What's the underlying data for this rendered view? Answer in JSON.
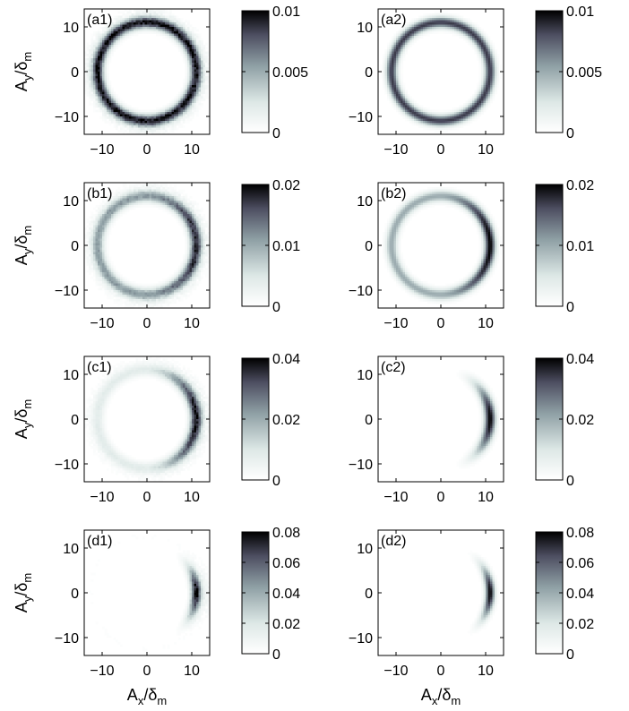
{
  "chart_data": [
    {
      "type": "heatmap",
      "panel_label": "(a1)",
      "x_ticks": [
        -10,
        0,
        10
      ],
      "y_ticks": [
        10,
        0,
        -10
      ],
      "xlim": [
        -14,
        14
      ],
      "ylim": [
        -14,
        14
      ],
      "colorbar": {
        "min": 0,
        "max": 0.01,
        "ticks": [
          "0.01",
          "0.005",
          "0"
        ]
      },
      "ring": {
        "radius": 11,
        "width": 1.3,
        "base_level": 0.95,
        "crescent": 0,
        "noise": true
      }
    },
    {
      "type": "heatmap",
      "panel_label": "(a2)",
      "x_ticks": [
        -10,
        0,
        10
      ],
      "y_ticks": [
        10,
        0,
        -10
      ],
      "xlim": [
        -14,
        14
      ],
      "ylim": [
        -14,
        14
      ],
      "colorbar": {
        "min": 0,
        "max": 0.01,
        "ticks": [
          "0.01",
          "0.005",
          "0"
        ]
      },
      "ring": {
        "radius": 11,
        "width": 1.2,
        "base_level": 0.85,
        "crescent": 0,
        "noise": false
      }
    },
    {
      "type": "heatmap",
      "panel_label": "(b1)",
      "x_ticks": [
        -10,
        0,
        10
      ],
      "y_ticks": [
        10,
        0,
        -10
      ],
      "xlim": [
        -14,
        14
      ],
      "ylim": [
        -14,
        14
      ],
      "colorbar": {
        "min": 0,
        "max": 0.02,
        "ticks": [
          "0.02",
          "0.01",
          "0"
        ]
      },
      "ring": {
        "radius": 11,
        "width": 1.3,
        "base_level": 0.55,
        "crescent": 0.35,
        "noise": true
      }
    },
    {
      "type": "heatmap",
      "panel_label": "(b2)",
      "x_ticks": [
        -10,
        0,
        10
      ],
      "y_ticks": [
        10,
        0,
        -10
      ],
      "xlim": [
        -14,
        14
      ],
      "ylim": [
        -14,
        14
      ],
      "colorbar": {
        "min": 0,
        "max": 0.02,
        "ticks": [
          "0.02",
          "0.01",
          "0"
        ]
      },
      "ring": {
        "radius": 11,
        "width": 1.2,
        "base_level": 0.5,
        "crescent": 0.5,
        "noise": false
      }
    },
    {
      "type": "heatmap",
      "panel_label": "(c1)",
      "x_ticks": [
        -10,
        0,
        10
      ],
      "y_ticks": [
        10,
        0,
        -10
      ],
      "xlim": [
        -14,
        14
      ],
      "ylim": [
        -14,
        14
      ],
      "colorbar": {
        "min": 0,
        "max": 0.04,
        "ticks": [
          "0.04",
          "0.02",
          "0"
        ]
      },
      "ring": {
        "radius": 11,
        "width": 1.3,
        "base_level": 0.2,
        "crescent": 0.75,
        "noise": true
      }
    },
    {
      "type": "heatmap",
      "panel_label": "(c2)",
      "x_ticks": [
        -10,
        0,
        10
      ],
      "y_ticks": [
        10,
        0,
        -10
      ],
      "xlim": [
        -14,
        14
      ],
      "ylim": [
        -14,
        14
      ],
      "colorbar": {
        "min": 0,
        "max": 0.04,
        "ticks": [
          "0.04",
          "0.02",
          "0"
        ]
      },
      "ring": {
        "radius": 11,
        "width": 1.2,
        "base_level": 0.0,
        "crescent": 1.0,
        "arc_sharpness": 3.5,
        "noise": false
      }
    },
    {
      "type": "heatmap",
      "panel_label": "(d1)",
      "x_ticks": [
        -10,
        0,
        10
      ],
      "y_ticks": [
        10,
        0,
        -10
      ],
      "xlim": [
        -14,
        14
      ],
      "ylim": [
        -14,
        14
      ],
      "colorbar": {
        "min": 0,
        "max": 0.08,
        "ticks": [
          "0.08",
          "0.06",
          "0.04",
          "0.02",
          "0"
        ]
      },
      "ring": {
        "radius": 11,
        "width": 1.1,
        "base_level": 0.0,
        "crescent": 1.0,
        "arc_sharpness": 8,
        "noise": true
      }
    },
    {
      "type": "heatmap",
      "panel_label": "(d2)",
      "x_ticks": [
        -10,
        0,
        10
      ],
      "y_ticks": [
        10,
        0,
        -10
      ],
      "xlim": [
        -14,
        14
      ],
      "ylim": [
        -14,
        14
      ],
      "colorbar": {
        "min": 0,
        "max": 0.08,
        "ticks": [
          "0.08",
          "0.06",
          "0.04",
          "0.02",
          "0"
        ]
      },
      "ring": {
        "radius": 11,
        "width": 1.0,
        "base_level": 0.0,
        "crescent": 1.0,
        "arc_sharpness": 7,
        "noise": false
      }
    }
  ],
  "axis_labels": {
    "y_main": "A",
    "y_sub": "y",
    "y_rest": "/δ",
    "y_end_sub": "m",
    "x_main": "A",
    "x_sub": "x",
    "x_rest": "/δ",
    "x_end_sub": "m"
  }
}
